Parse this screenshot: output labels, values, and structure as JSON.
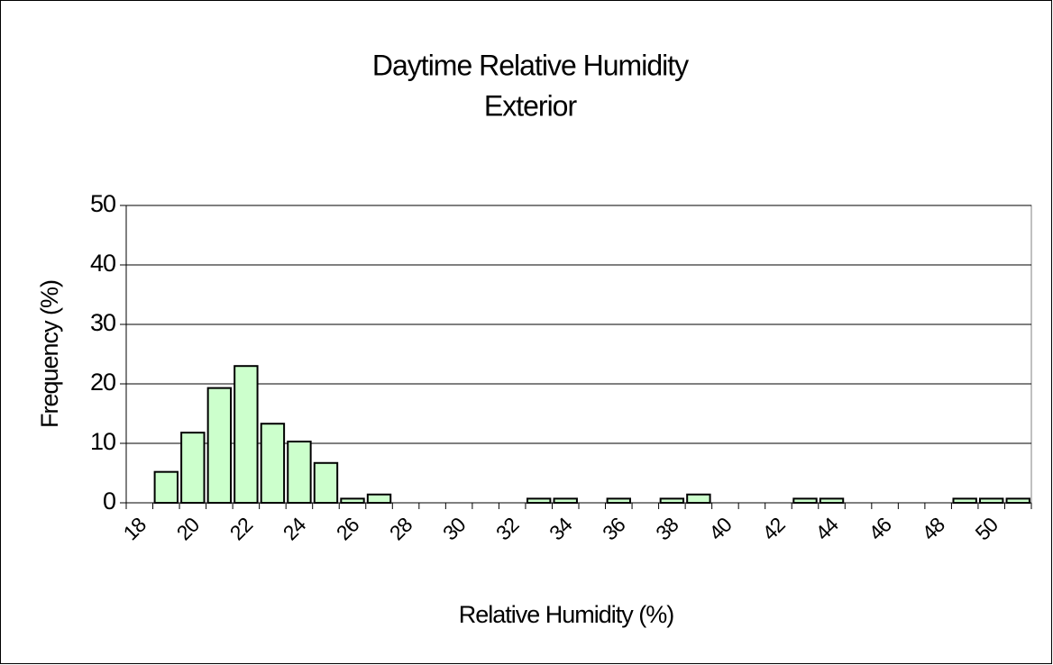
{
  "chart_data": {
    "type": "bar",
    "title": "Daytime Relative Humidity",
    "subtitle": "Exterior",
    "xlabel": "Relative Humidity (%)",
    "ylabel": "Frequency (%)",
    "categories": [
      18,
      null,
      20,
      null,
      22,
      null,
      24,
      null,
      26,
      null,
      28,
      null,
      30,
      null,
      32,
      null,
      34,
      null,
      36,
      null,
      38,
      null,
      40,
      null,
      42,
      null,
      44,
      null,
      46,
      null,
      48,
      null,
      50,
      null
    ],
    "values": [
      0,
      5.2,
      11.8,
      19.3,
      23,
      13.3,
      10.3,
      6.7,
      0.7,
      1.4,
      0,
      0,
      0,
      0,
      0,
      0.7,
      0.7,
      0,
      0.7,
      0,
      0.7,
      1.4,
      0,
      0,
      0,
      0.7,
      0.7,
      0,
      0,
      0,
      0,
      0.7,
      0.7,
      0.7
    ],
    "color": "#ccffcc",
    "ylim": [
      0,
      50
    ],
    "yticks": [
      0,
      10,
      20,
      30,
      40,
      50
    ],
    "grid": true
  }
}
